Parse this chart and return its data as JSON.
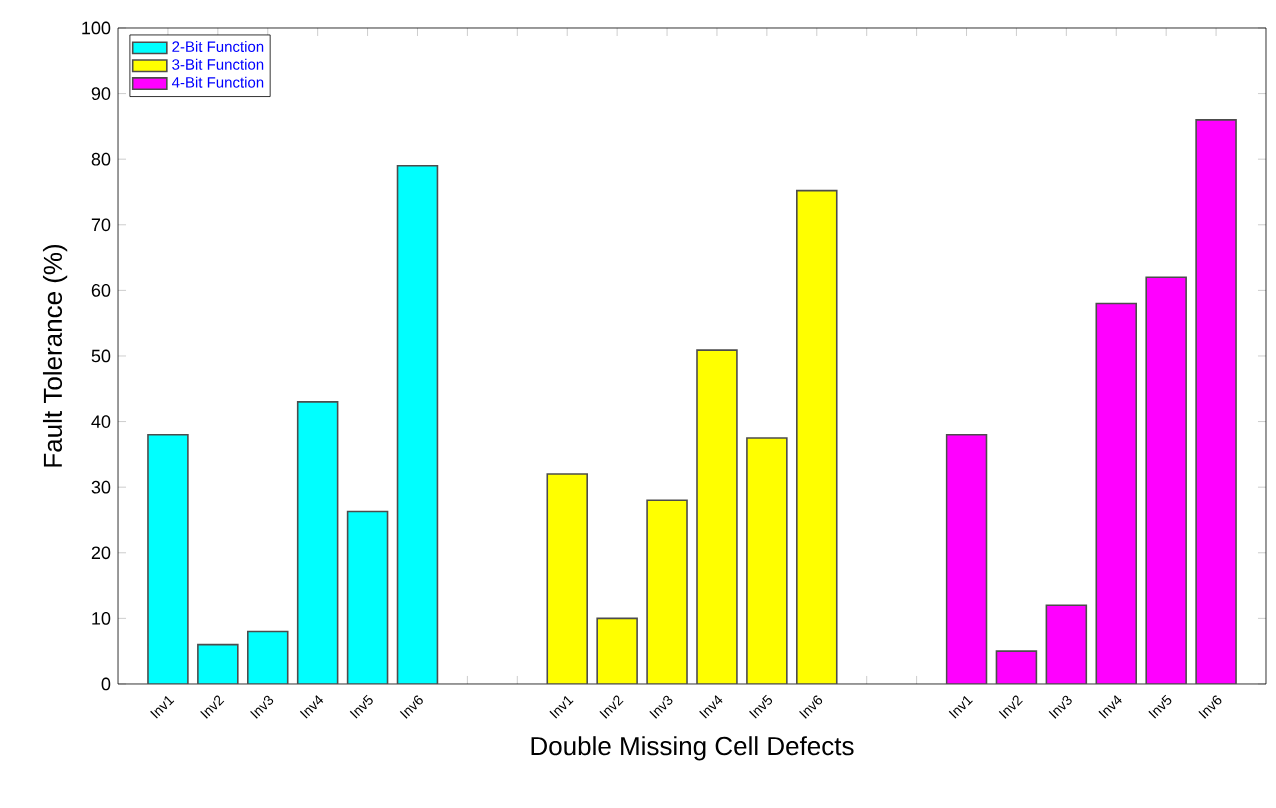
{
  "chart_data": {
    "type": "bar",
    "xlabel": "Double Missing Cell Defects",
    "ylabel": "Fault Tolerance (%)",
    "categories": [
      "Inv1",
      "Inv2",
      "Inv3",
      "Inv4",
      "Inv5",
      "Inv6",
      null,
      null,
      "Inv1",
      "Inv2",
      "Inv3",
      "Inv4",
      "Inv5",
      "Inv6",
      null,
      null,
      "Inv1",
      "Inv2",
      "Inv3",
      "Inv4",
      "Inv5",
      "Inv6"
    ],
    "series": [
      {
        "name": "2-Bit Function",
        "color": "#00ffff",
        "values": [
          38,
          6,
          8,
          43,
          26.3,
          79,
          null,
          null,
          null,
          null,
          null,
          null,
          null,
          null,
          null,
          null,
          null,
          null,
          null,
          null,
          null,
          null
        ]
      },
      {
        "name": "3-Bit Function",
        "color": "#ffff00",
        "values": [
          null,
          null,
          null,
          null,
          null,
          null,
          null,
          null,
          32,
          10,
          28,
          50.9,
          37.5,
          75.2,
          null,
          null,
          null,
          null,
          null,
          null,
          null,
          null
        ]
      },
      {
        "name": "4-Bit Function",
        "color": "#ff00ff",
        "values": [
          null,
          null,
          null,
          null,
          null,
          null,
          null,
          null,
          null,
          null,
          null,
          null,
          null,
          null,
          null,
          null,
          38,
          5,
          12,
          58,
          62,
          86
        ]
      }
    ],
    "ylim": [
      0,
      100
    ],
    "yticks": [
      0,
      10,
      20,
      30,
      40,
      50,
      60,
      70,
      80,
      90,
      100
    ],
    "legend": "top left"
  }
}
